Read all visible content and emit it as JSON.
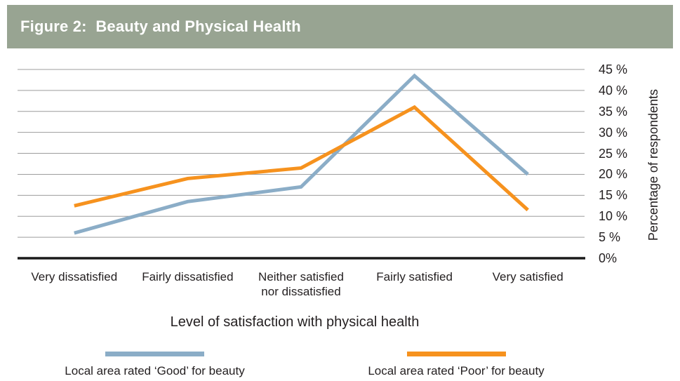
{
  "header": {
    "title": "Figure 2:  Beauty and Physical Health",
    "bg_color": "#98A492",
    "text_color": "#FFFFFF"
  },
  "chart_data": {
    "type": "line",
    "title": "Figure 2: Beauty and Physical Health",
    "categories": [
      "Very dissatisfied",
      "Fairly dissatisfied",
      "Neither satisfied\nnor dissatisfied",
      "Fairly satisfied",
      "Very satisfied"
    ],
    "series": [
      {
        "id": "good",
        "name": "Local area rated ‘Good’ for beauty",
        "color": "#8BADC7",
        "values": [
          6,
          13.5,
          17,
          43.5,
          20
        ]
      },
      {
        "id": "poor",
        "name": "Local area rated ‘Poor’ for beauty",
        "color": "#F6921E",
        "values": [
          12.5,
          19,
          21.5,
          36,
          11.5
        ]
      }
    ],
    "xlabel": "Level of satisfaction with physical health",
    "ylabel": "Percentage of respondents",
    "ylim": [
      0,
      45
    ],
    "ytick_step": 5,
    "ytick_labels": [
      "0%",
      "5 %",
      "10 %",
      "15 %",
      "20 %",
      "25 %",
      "30 %",
      "35 %",
      "40 %",
      "45 %"
    ],
    "grid": true,
    "gridline_color": "#9C9C9C",
    "axis_color": "#1A1A1A",
    "legend_position": "bottom"
  },
  "legend": {
    "items": [
      {
        "id": "good",
        "label": "Local area rated ‘Good’ for beauty",
        "color": "#8BADC7"
      },
      {
        "id": "poor",
        "label": "Local area rated ‘Poor’ for beauty",
        "color": "#F6921E"
      }
    ]
  }
}
